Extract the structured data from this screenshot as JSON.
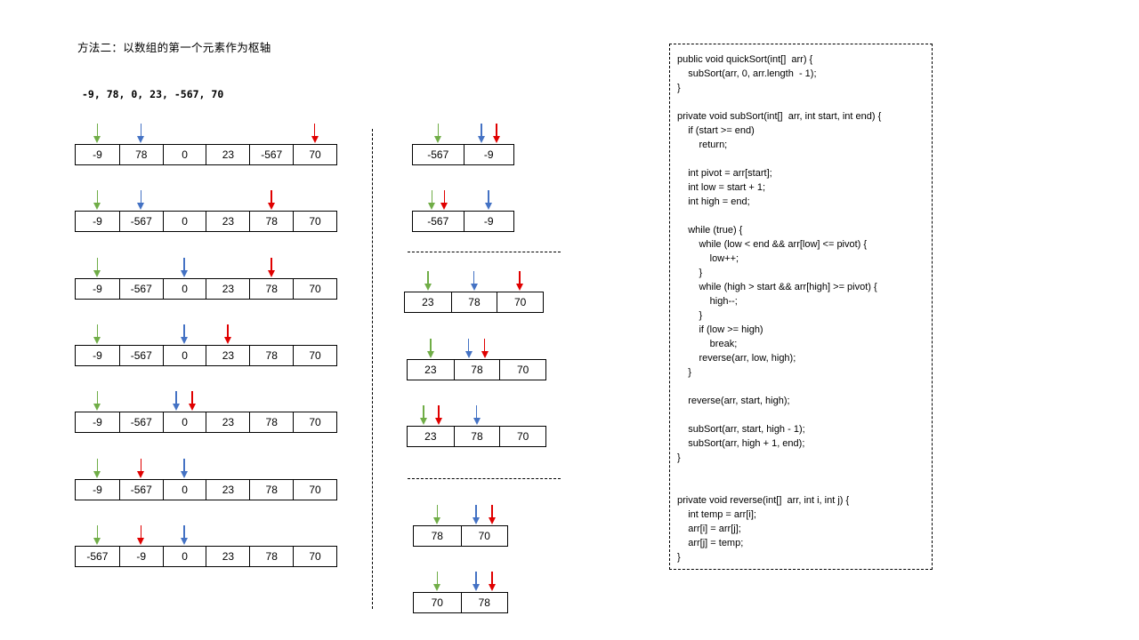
{
  "title": "方法二：以数组的第一个元素作为枢轴",
  "input_array": "-9, 78, 0, 23, -567, 70",
  "arrow_colors": {
    "green": "#70AD47",
    "blue": "#4472C4",
    "red": "#E00000"
  },
  "left_steps": [
    {
      "cells": [
        "-9",
        "78",
        "0",
        "23",
        "-567",
        "70"
      ]
    },
    {
      "cells": [
        "-9",
        "-567",
        "0",
        "23",
        "78",
        "70"
      ]
    },
    {
      "cells": [
        "-9",
        "-567",
        "0",
        "23",
        "78",
        "70"
      ]
    },
    {
      "cells": [
        "-9",
        "-567",
        "0",
        "23",
        "78",
        "70"
      ]
    },
    {
      "cells": [
        "-9",
        "-567",
        "0",
        "23",
        "78",
        "70"
      ]
    },
    {
      "cells": [
        "-9",
        "-567",
        "0",
        "23",
        "78",
        "70"
      ]
    },
    {
      "cells": [
        "-567",
        "-9",
        "0",
        "23",
        "78",
        "70"
      ]
    }
  ],
  "right_steps": [
    {
      "cells": [
        "-567",
        "-9"
      ]
    },
    {
      "cells": [
        "-567",
        "-9"
      ]
    },
    {
      "cells": [
        "23",
        "78",
        "70"
      ]
    },
    {
      "cells": [
        "23",
        "78",
        "70"
      ]
    },
    {
      "cells": [
        "23",
        "78",
        "70"
      ]
    },
    {
      "cells": [
        "78",
        "70"
      ]
    },
    {
      "cells": [
        "70",
        "78"
      ]
    }
  ],
  "code_lines": [
    "public void quickSort(int[]  arr) {",
    "    subSort(arr, 0, arr.length  - 1);",
    "}",
    "",
    "private void subSort(int[]  arr, int start, int end) {",
    "    if (start >= end)",
    "        return;",
    "",
    "    int pivot = arr[start];",
    "    int low = start + 1;",
    "    int high = end;",
    "",
    "    while (true) {",
    "        while (low < end && arr[low] <= pivot) {",
    "            low++;",
    "        }",
    "        while (high > start && arr[high] >= pivot) {",
    "            high--;",
    "        }",
    "        if (low >= high)",
    "            break;",
    "        reverse(arr, low, high);",
    "    }",
    "",
    "    reverse(arr, start, high);",
    "",
    "    subSort(arr, start, high - 1);",
    "    subSort(arr, high + 1, end);",
    "}",
    "",
    "",
    "private void reverse(int[]  arr, int i, int j) {",
    "    int temp = arr[i];",
    "    arr[i] = arr[j];",
    "    arr[j] = temp;",
    "}"
  ]
}
